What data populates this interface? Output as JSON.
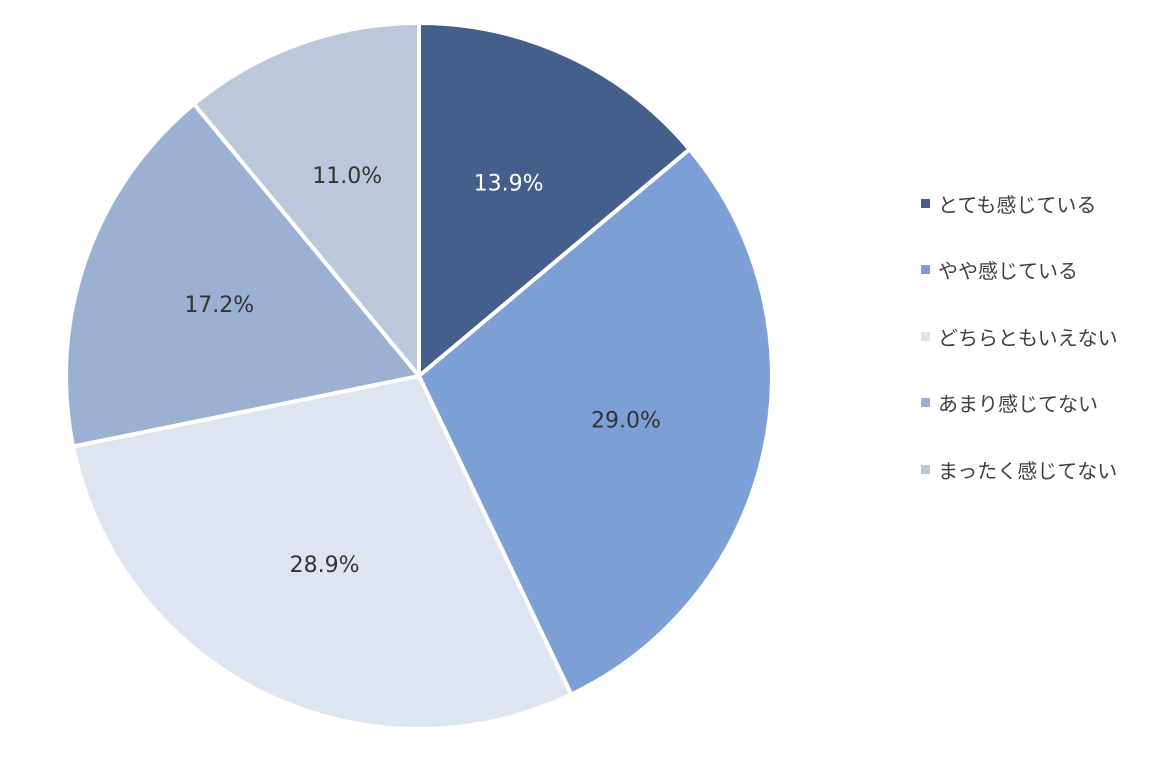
{
  "chart_data": {
    "type": "pie",
    "categories": [
      "とても感じている",
      "やや感じている",
      "どちらともいえない",
      "あまり感じてない",
      "まったく感じてない"
    ],
    "values": [
      13.9,
      29.0,
      28.9,
      17.2,
      11.0
    ],
    "labels": [
      "13.9%",
      "29.0%",
      "28.9%",
      "17.2%",
      "11.0%"
    ],
    "colors": [
      "#445f8b",
      "#7c9fd6",
      "#dfe5f0",
      "#9bb0d2",
      "#bcc7db"
    ],
    "label_colors": [
      "#ffffff",
      "#333333",
      "#333333",
      "#333333",
      "#333333"
    ],
    "start": "12 o'clock",
    "direction": "clockwise",
    "legend_position": "right"
  }
}
